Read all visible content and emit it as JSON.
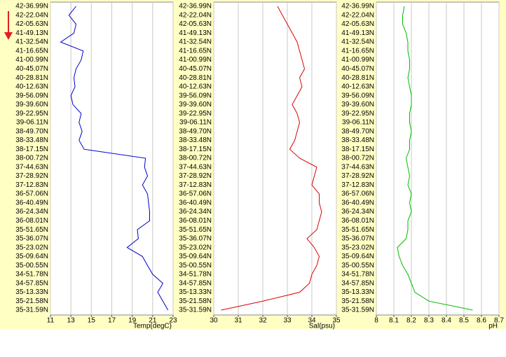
{
  "chart_data": [
    {
      "type": "line",
      "x_label": "Temp(degC)",
      "categories": [
        "42-36.99N",
        "42-22.04N",
        "42-05.63N",
        "41-49.13N",
        "41-32.54N",
        "41-16.65N",
        "41-00.99N",
        "40-45.07N",
        "40-28.81N",
        "40-12.63N",
        "39-56.09N",
        "39-39.60N",
        "39-22.95N",
        "39-06.11N",
        "38-49.70N",
        "38-33.48N",
        "38-17.15N",
        "38-00.72N",
        "37-44.63N",
        "37-28.92N",
        "37-12.83N",
        "36-57.06N",
        "36-40.49N",
        "36-24.34N",
        "36-08.01N",
        "35-51.65N",
        "35-36.07N",
        "35-23.02N",
        "35-09.64N",
        "35-00.55N",
        "34-51.78N",
        "34-57.85N",
        "35-13.33N",
        "35-21.58N",
        "35-31.59N"
      ],
      "values": [
        13.5,
        12.8,
        13.5,
        13.3,
        12.0,
        14.2,
        14.0,
        13.5,
        13.3,
        13.4,
        13.0,
        13.2,
        14.0,
        13.8,
        14.1,
        13.8,
        14.3,
        20.3,
        20.2,
        20.5,
        20.0,
        20.5,
        20.6,
        20.7,
        20.7,
        19.5,
        19.6,
        18.5,
        20.0,
        20.5,
        21.0,
        22.0,
        21.5,
        22.0,
        22.5
      ],
      "color": "#0000cc",
      "xlim": [
        11,
        23
      ],
      "xticks": [
        11,
        13,
        15,
        17,
        19,
        21,
        23
      ],
      "grid": true
    },
    {
      "type": "line",
      "x_label": "Sal(psu)",
      "categories": [
        "42-36.99N",
        "42-22.04N",
        "42-05.63N",
        "41-49.13N",
        "41-32.54N",
        "41-16.65N",
        "41-00.99N",
        "40-45.07N",
        "40-28.81N",
        "40-12.63N",
        "39-56.09N",
        "39-39.60N",
        "39-22.95N",
        "39-06.11N",
        "38-49.70N",
        "38-33.48N",
        "38-17.15N",
        "38-00.72N",
        "37-44.63N",
        "37-28.92N",
        "37-12.83N",
        "36-57.06N",
        "36-40.49N",
        "36-24.34N",
        "36-08.01N",
        "35-51.65N",
        "35-36.07N",
        "35-23.02N",
        "35-09.64N",
        "35-00.55N",
        "34-51.78N",
        "34-57.85N",
        "35-13.33N",
        "35-21.58N",
        "35-31.59N"
      ],
      "values": [
        32.6,
        32.8,
        33.0,
        33.2,
        33.4,
        33.5,
        33.6,
        33.7,
        33.5,
        33.6,
        33.4,
        33.2,
        33.4,
        33.5,
        33.4,
        33.3,
        33.1,
        33.5,
        34.2,
        34.1,
        34.0,
        34.3,
        34.3,
        34.4,
        34.3,
        34.2,
        33.8,
        34.1,
        34.3,
        34.2,
        34.0,
        33.9,
        33.5,
        32.0,
        30.3
      ],
      "color": "#dd0000",
      "xlim": [
        30,
        35
      ],
      "xticks": [
        30,
        31,
        32,
        33,
        34,
        35
      ],
      "grid": true
    },
    {
      "type": "line",
      "x_label": "pH",
      "categories": [
        "42-36.99N",
        "42-22.04N",
        "42-05.63N",
        "41-49.13N",
        "41-32.54N",
        "41-16.65N",
        "41-00.99N",
        "40-45.07N",
        "40-28.81N",
        "40-12.63N",
        "39-56.09N",
        "39-39.60N",
        "39-22.95N",
        "39-06.11N",
        "38-49.70N",
        "38-33.48N",
        "38-17.15N",
        "38-00.72N",
        "37-44.63N",
        "37-28.92N",
        "37-12.83N",
        "36-57.06N",
        "36-40.49N",
        "36-24.34N",
        "36-08.01N",
        "35-51.65N",
        "35-36.07N",
        "35-23.02N",
        "35-09.64N",
        "35-00.55N",
        "34-51.78N",
        "34-57.85N",
        "35-13.33N",
        "35-21.58N",
        "35-31.59N"
      ],
      "values": [
        8.16,
        8.15,
        8.15,
        8.17,
        8.18,
        8.18,
        8.19,
        8.19,
        8.18,
        8.19,
        8.2,
        8.2,
        8.19,
        8.19,
        8.2,
        8.19,
        8.19,
        8.17,
        8.18,
        8.19,
        8.18,
        8.2,
        8.19,
        8.2,
        8.18,
        8.18,
        8.17,
        8.12,
        8.13,
        8.15,
        8.18,
        8.2,
        8.22,
        8.3,
        8.55
      ],
      "color": "#00bb00",
      "xlim": [
        8,
        8.7
      ],
      "xticks": [
        8,
        8.1,
        8.2,
        8.3,
        8.4,
        8.5,
        8.6,
        8.7
      ],
      "grid": true
    }
  ]
}
